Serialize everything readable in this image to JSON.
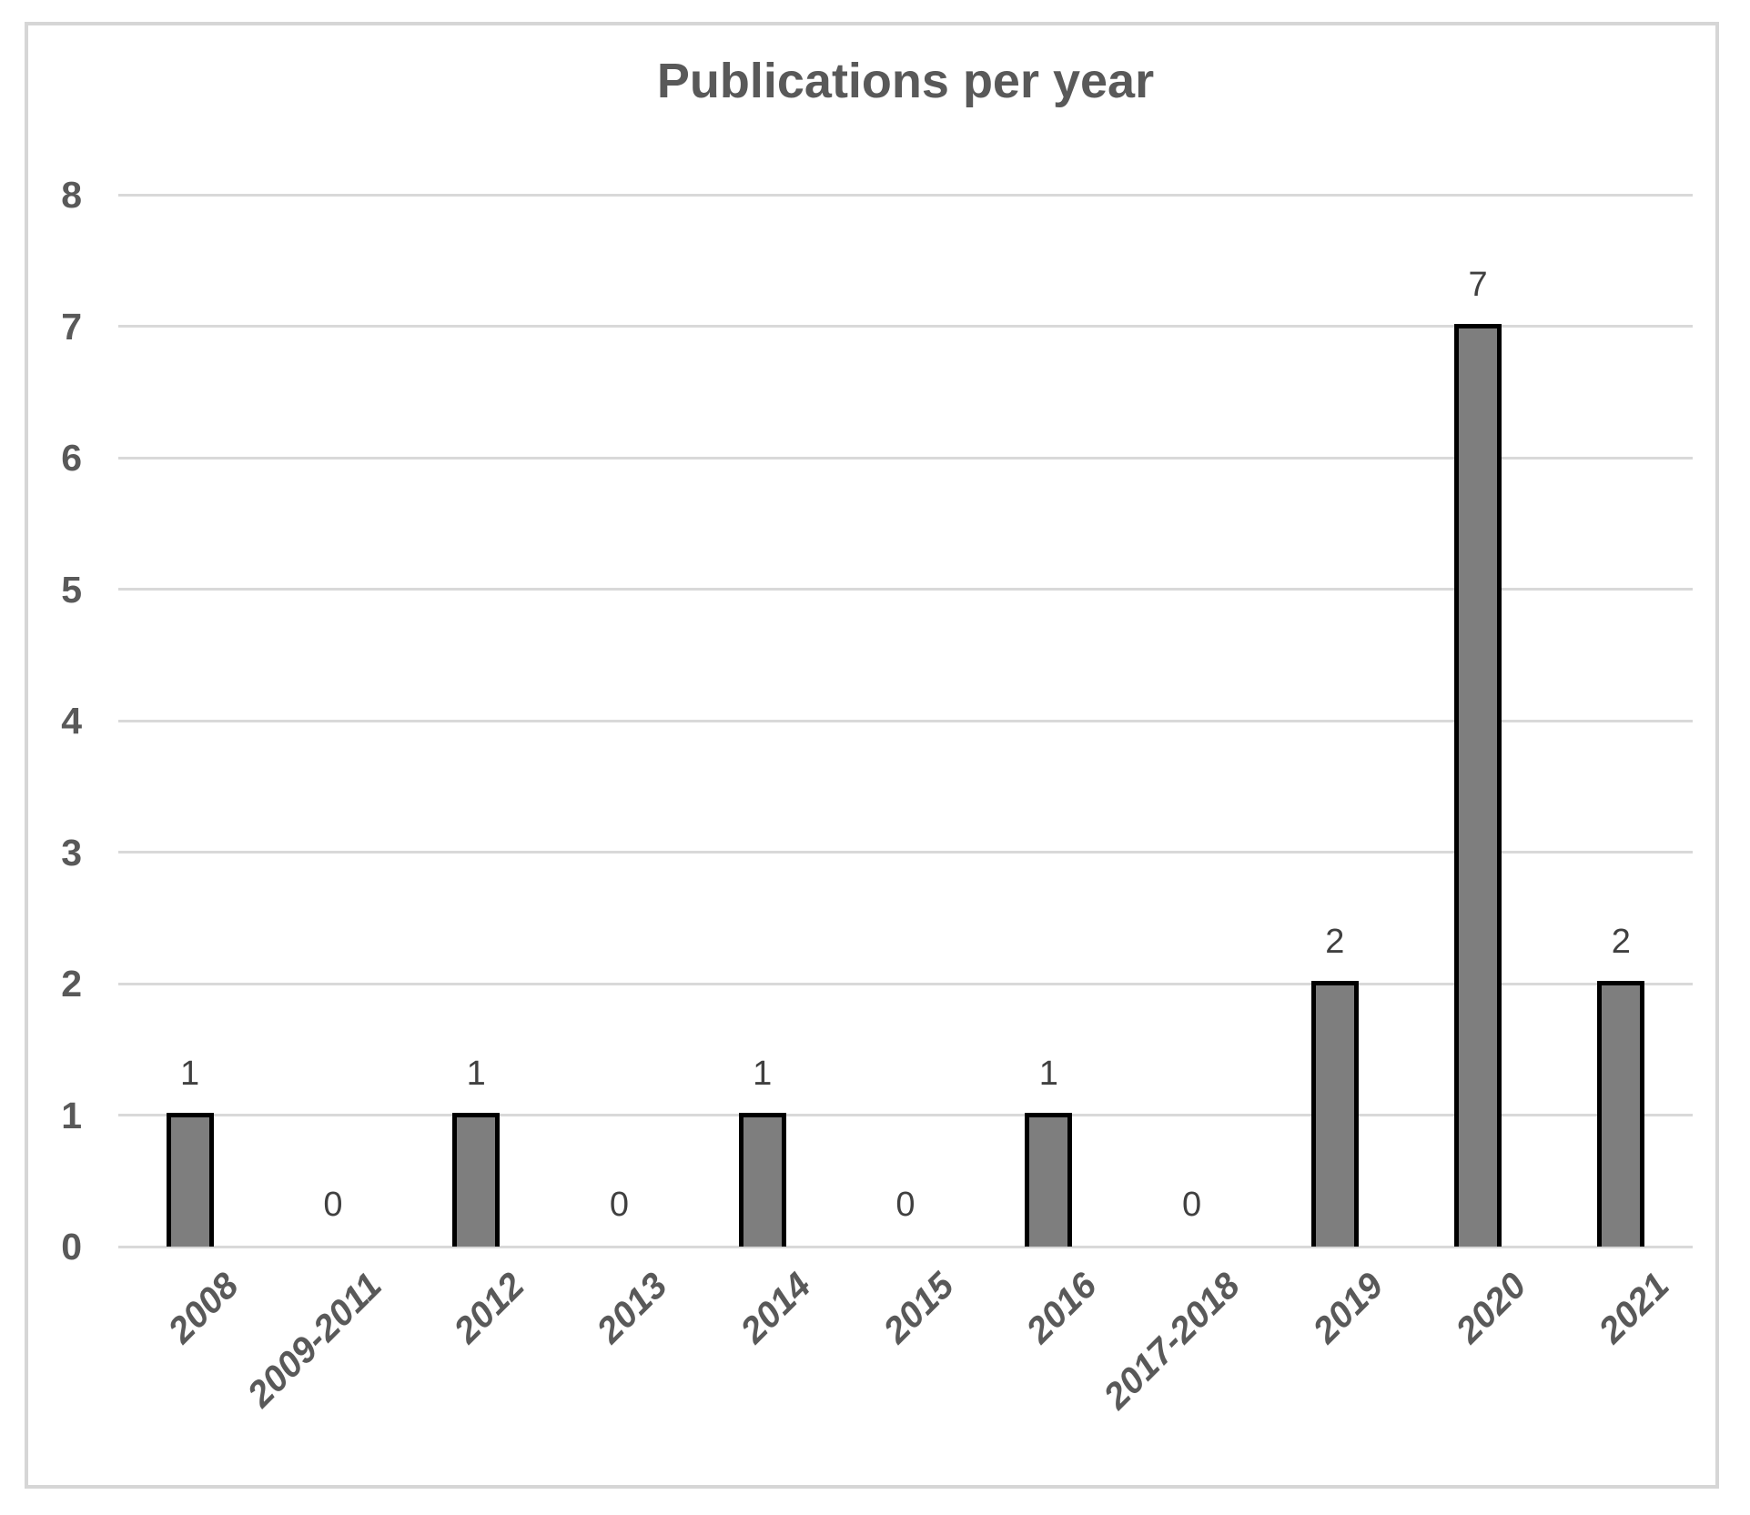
{
  "figure": {
    "title": "Publications per year"
  },
  "chart_data": {
    "type": "bar",
    "title": "Publications per year",
    "categories": [
      "2008",
      "2009-2011",
      "2012",
      "2013",
      "2014",
      "2015",
      "2016",
      "2017-2018",
      "2019",
      "2020",
      "2021"
    ],
    "values": [
      1,
      0,
      1,
      0,
      1,
      0,
      1,
      0,
      2,
      7,
      2
    ],
    "data_labels": [
      "1",
      "0",
      "1",
      "0",
      "1",
      "0",
      "1",
      "0",
      "2",
      "7",
      "2"
    ],
    "xlabel": "",
    "ylabel": "",
    "ylim": [
      0,
      8
    ],
    "yticks": [
      0,
      1,
      2,
      3,
      4,
      5,
      6,
      7,
      8
    ],
    "grid": "horizontal-on",
    "legend": "none",
    "colors": {
      "bar_fill": "#7E7E7E",
      "bar_outline": "#000000",
      "gridline": "#D9D9D9",
      "axis_text": "#595959",
      "data_label_text": "#404040",
      "frame_border": "#D6D6D6",
      "background": "#FFFFFF"
    }
  }
}
